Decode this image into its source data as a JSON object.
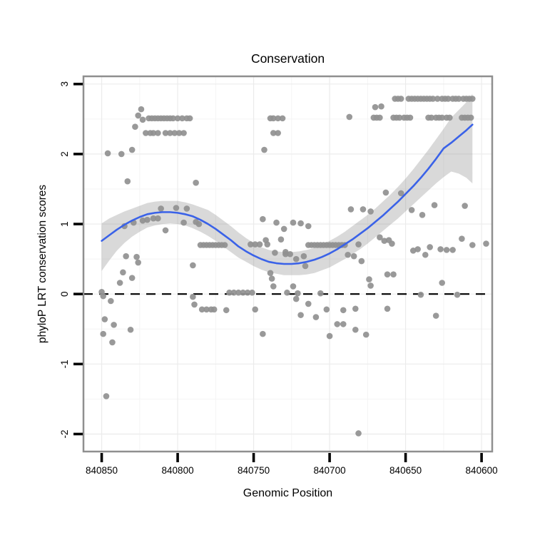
{
  "chart_data": {
    "type": "scatter",
    "title": "Conservation",
    "xlabel": "Genomic Position",
    "ylabel": "phyloP LRT conservation scores",
    "x_axis_reversed": true,
    "x_range": [
      840862,
      840593
    ],
    "y_range": [
      -2.25,
      3.11
    ],
    "x_ticks": [
      840850,
      840800,
      840750,
      840700,
      840650,
      840600
    ],
    "x_tick_labels": [
      "840850",
      "840800",
      "840750",
      "840700",
      "840650",
      "840600"
    ],
    "x_minor_ticks": [
      840825,
      840775,
      840725,
      840675,
      840625
    ],
    "y_ticks": [
      3,
      2,
      1,
      0,
      -1,
      -2
    ],
    "y_tick_labels": [
      "3",
      "2",
      "1",
      "0",
      "-1",
      "-2"
    ],
    "y_minor_ticks": [
      2.5,
      1.5,
      0.5,
      -0.5,
      -1.5
    ],
    "grid": "major and minor, very faint, on white panel",
    "zero_line": {
      "y": 0,
      "style": "dashed",
      "color": "#000000"
    },
    "colors": {
      "points": "#909090",
      "smooth_line": "#3A62E8",
      "band": "#8a8a8a",
      "band_opacity": 0.32,
      "grid_major": "#ebebeb",
      "grid_minor": "#f4f4f4",
      "panel_border": "#8f8f8f",
      "tick": "#000000",
      "text": "#000000"
    },
    "smooth_line": {
      "x": [
        840850,
        840845,
        840840,
        840835,
        840830,
        840825,
        840820,
        840815,
        840810,
        840805,
        840800,
        840795,
        840790,
        840785,
        840780,
        840775,
        840770,
        840765,
        840760,
        840755,
        840750,
        840745,
        840740,
        840735,
        840730,
        840725,
        840720,
        840715,
        840710,
        840705,
        840700,
        840695,
        840690,
        840685,
        840680,
        840675,
        840670,
        840665,
        840660,
        840655,
        840650,
        840645,
        840640,
        840635,
        840630,
        840625,
        840620,
        840615,
        840610,
        840606
      ],
      "y": [
        0.76,
        0.84,
        0.92,
        0.99,
        1.05,
        1.1,
        1.14,
        1.16,
        1.17,
        1.17,
        1.16,
        1.14,
        1.11,
        1.06,
        1.0,
        0.93,
        0.85,
        0.77,
        0.68,
        0.61,
        0.55,
        0.5,
        0.46,
        0.44,
        0.43,
        0.43,
        0.44,
        0.46,
        0.49,
        0.53,
        0.58,
        0.64,
        0.71,
        0.78,
        0.86,
        0.94,
        1.03,
        1.12,
        1.22,
        1.32,
        1.43,
        1.54,
        1.66,
        1.79,
        1.93,
        2.08,
        2.16,
        2.25,
        2.34,
        2.42
      ]
    },
    "confidence_band": {
      "x": [
        840850,
        840845,
        840840,
        840835,
        840830,
        840825,
        840820,
        840815,
        840810,
        840805,
        840800,
        840795,
        840790,
        840785,
        840780,
        840775,
        840770,
        840765,
        840760,
        840755,
        840750,
        840745,
        840740,
        840735,
        840730,
        840725,
        840720,
        840715,
        840710,
        840705,
        840700,
        840695,
        840690,
        840685,
        840680,
        840675,
        840670,
        840665,
        840660,
        840655,
        840650,
        840645,
        840640,
        840635,
        840630,
        840625,
        840620,
        840615,
        840610,
        840606
      ],
      "upper": [
        1.01,
        1.08,
        1.13,
        1.18,
        1.22,
        1.26,
        1.3,
        1.32,
        1.33,
        1.33,
        1.33,
        1.31,
        1.28,
        1.24,
        1.2,
        1.13,
        1.05,
        0.97,
        0.88,
        0.8,
        0.73,
        0.67,
        0.63,
        0.61,
        0.6,
        0.6,
        0.61,
        0.63,
        0.66,
        0.71,
        0.76,
        0.82,
        0.89,
        0.97,
        1.05,
        1.13,
        1.22,
        1.32,
        1.42,
        1.53,
        1.65,
        1.78,
        1.92,
        2.06,
        2.21,
        2.36,
        2.52,
        2.63,
        2.74,
        2.86
      ],
      "lower": [
        0.33,
        0.48,
        0.62,
        0.73,
        0.82,
        0.89,
        0.95,
        0.98,
        1.0,
        1.01,
        1.0,
        0.98,
        0.94,
        0.89,
        0.83,
        0.76,
        0.68,
        0.6,
        0.52,
        0.46,
        0.4,
        0.35,
        0.31,
        0.29,
        0.27,
        0.27,
        0.27,
        0.28,
        0.3,
        0.34,
        0.38,
        0.44,
        0.5,
        0.57,
        0.64,
        0.72,
        0.81,
        0.9,
        0.99,
        1.08,
        1.18,
        1.28,
        1.38,
        1.48,
        1.58,
        1.67,
        1.75,
        1.72,
        1.66,
        1.58
      ]
    },
    "points": [
      [
        840657,
        2.79
      ],
      [
        840655,
        2.79
      ],
      [
        840653,
        2.79
      ],
      [
        840648,
        2.79
      ],
      [
        840646,
        2.79
      ],
      [
        840644,
        2.79
      ],
      [
        840642,
        2.79
      ],
      [
        840640,
        2.79
      ],
      [
        840638,
        2.79
      ],
      [
        840636,
        2.79
      ],
      [
        840634,
        2.79
      ],
      [
        840632,
        2.79
      ],
      [
        840629,
        2.79
      ],
      [
        840626,
        2.79
      ],
      [
        840624,
        2.79
      ],
      [
        840622,
        2.79
      ],
      [
        840619,
        2.79
      ],
      [
        840617,
        2.79
      ],
      [
        840615,
        2.79
      ],
      [
        840612,
        2.79
      ],
      [
        840610,
        2.79
      ],
      [
        840608,
        2.79
      ],
      [
        840606,
        2.79
      ],
      [
        840687,
        2.53
      ],
      [
        840671,
        2.52
      ],
      [
        840669,
        2.52
      ],
      [
        840667,
        2.52
      ],
      [
        840658,
        2.52
      ],
      [
        840656,
        2.52
      ],
      [
        840654,
        2.52
      ],
      [
        840651,
        2.52
      ],
      [
        840649,
        2.52
      ],
      [
        840647,
        2.52
      ],
      [
        840635,
        2.52
      ],
      [
        840633,
        2.52
      ],
      [
        840630,
        2.52
      ],
      [
        840628,
        2.52
      ],
      [
        840626,
        2.52
      ],
      [
        840623,
        2.52
      ],
      [
        840621,
        2.52
      ],
      [
        840613,
        2.52
      ],
      [
        840611,
        2.52
      ],
      [
        840609,
        2.52
      ],
      [
        840607,
        2.52
      ],
      [
        840670,
        2.67
      ],
      [
        840666,
        2.68
      ],
      [
        840824,
        2.64
      ],
      [
        840826,
        2.55
      ],
      [
        840823,
        2.49
      ],
      [
        840819,
        2.51
      ],
      [
        840817,
        2.51
      ],
      [
        840815,
        2.51
      ],
      [
        840813,
        2.51
      ],
      [
        840811,
        2.51
      ],
      [
        840809,
        2.51
      ],
      [
        840807,
        2.51
      ],
      [
        840805,
        2.51
      ],
      [
        840803,
        2.51
      ],
      [
        840800,
        2.51
      ],
      [
        840797,
        2.51
      ],
      [
        840794,
        2.51
      ],
      [
        840792,
        2.51
      ],
      [
        840739,
        2.51
      ],
      [
        840737,
        2.51
      ],
      [
        840734,
        2.51
      ],
      [
        840731,
        2.51
      ],
      [
        840828,
        2.39
      ],
      [
        840821,
        2.3
      ],
      [
        840818,
        2.3
      ],
      [
        840816,
        2.3
      ],
      [
        840813,
        2.3
      ],
      [
        840808,
        2.3
      ],
      [
        840805,
        2.3
      ],
      [
        840802,
        2.3
      ],
      [
        840799,
        2.3
      ],
      [
        840796,
        2.3
      ],
      [
        840737,
        2.3
      ],
      [
        840734,
        2.3
      ],
      [
        840846,
        2.01
      ],
      [
        840837,
        2.0
      ],
      [
        840830,
        2.06
      ],
      [
        840743,
        2.06
      ],
      [
        840833,
        1.61
      ],
      [
        840788,
        1.59
      ],
      [
        840663,
        1.45
      ],
      [
        840653,
        1.44
      ],
      [
        840686,
        1.21
      ],
      [
        840678,
        1.21
      ],
      [
        840673,
        1.18
      ],
      [
        840631,
        1.27
      ],
      [
        840611,
        1.26
      ],
      [
        840811,
        1.22
      ],
      [
        840801,
        1.23
      ],
      [
        840794,
        1.22
      ],
      [
        840646,
        1.2
      ],
      [
        840639,
        1.13
      ],
      [
        840835,
        0.97
      ],
      [
        840829,
        1.02
      ],
      [
        840823,
        1.05
      ],
      [
        840820,
        1.06
      ],
      [
        840816,
        1.08
      ],
      [
        840813,
        1.08
      ],
      [
        840808,
        0.91
      ],
      [
        840796,
        1.02
      ],
      [
        840788,
        1.03
      ],
      [
        840786,
        1.0
      ],
      [
        840744,
        1.07
      ],
      [
        840735,
        1.02
      ],
      [
        840730,
        0.93
      ],
      [
        840724,
        1.02
      ],
      [
        840719,
        1.01
      ],
      [
        840714,
        0.97
      ],
      [
        840785,
        0.7
      ],
      [
        840783,
        0.7
      ],
      [
        840781,
        0.7
      ],
      [
        840779,
        0.7
      ],
      [
        840777,
        0.7
      ],
      [
        840775,
        0.7
      ],
      [
        840773,
        0.7
      ],
      [
        840771,
        0.7
      ],
      [
        840769,
        0.7
      ],
      [
        840752,
        0.71
      ],
      [
        840749,
        0.71
      ],
      [
        840746,
        0.71
      ],
      [
        840741,
        0.71
      ],
      [
        840742,
        0.77
      ],
      [
        840732,
        0.78
      ],
      [
        840714,
        0.7
      ],
      [
        840712,
        0.7
      ],
      [
        840710,
        0.7
      ],
      [
        840708,
        0.7
      ],
      [
        840706,
        0.7
      ],
      [
        840704,
        0.7
      ],
      [
        840702,
        0.7
      ],
      [
        840700,
        0.7
      ],
      [
        840698,
        0.7
      ],
      [
        840696,
        0.7
      ],
      [
        840694,
        0.7
      ],
      [
        840692,
        0.7
      ],
      [
        840690,
        0.7
      ],
      [
        840681,
        0.71
      ],
      [
        840667,
        0.81
      ],
      [
        840664,
        0.76
      ],
      [
        840661,
        0.77
      ],
      [
        840659,
        0.72
      ],
      [
        840613,
        0.79
      ],
      [
        840606,
        0.7
      ],
      [
        840597,
        0.72
      ],
      [
        840634,
        0.67
      ],
      [
        840627,
        0.64
      ],
      [
        840623,
        0.63
      ],
      [
        840619,
        0.63
      ],
      [
        840645,
        0.62
      ],
      [
        840642,
        0.64
      ],
      [
        840637,
        0.56
      ],
      [
        840736,
        0.59
      ],
      [
        840729,
        0.6
      ],
      [
        840834,
        0.54
      ],
      [
        840827,
        0.53
      ],
      [
        840826,
        0.45
      ],
      [
        840790,
        0.41
      ],
      [
        840729,
        0.57
      ],
      [
        840726,
        0.57
      ],
      [
        840722,
        0.5
      ],
      [
        840717,
        0.54
      ],
      [
        840716,
        0.4
      ],
      [
        840688,
        0.56
      ],
      [
        840684,
        0.54
      ],
      [
        840679,
        0.47
      ],
      [
        840850,
        0.03
      ],
      [
        840849,
        -0.03
      ],
      [
        840844,
        -0.1
      ],
      [
        840838,
        0.16
      ],
      [
        840836,
        0.31
      ],
      [
        840830,
        0.23
      ],
      [
        840790,
        -0.04
      ],
      [
        840789,
        -0.15
      ],
      [
        840766,
        0.02
      ],
      [
        840763,
        0.02
      ],
      [
        840760,
        0.02
      ],
      [
        840757,
        0.02
      ],
      [
        840754,
        0.02
      ],
      [
        840751,
        0.02
      ],
      [
        840739,
        0.3
      ],
      [
        840738,
        0.22
      ],
      [
        840737,
        0.11
      ],
      [
        840728,
        0.02
      ],
      [
        840724,
        0.11
      ],
      [
        840721,
        0.01
      ],
      [
        840722,
        -0.07
      ],
      [
        840714,
        -0.14
      ],
      [
        840706,
        0.01
      ],
      [
        840674,
        0.21
      ],
      [
        840673,
        0.12
      ],
      [
        840662,
        0.28
      ],
      [
        840658,
        0.28
      ],
      [
        840640,
        -0.01
      ],
      [
        840626,
        0.16
      ],
      [
        840616,
        -0.01
      ],
      [
        840848,
        -0.36
      ],
      [
        840842,
        -0.44
      ],
      [
        840849,
        -0.57
      ],
      [
        840843,
        -0.69
      ],
      [
        840847,
        -1.46
      ],
      [
        840831,
        -0.51
      ],
      [
        840784,
        -0.22
      ],
      [
        840781,
        -0.22
      ],
      [
        840778,
        -0.22
      ],
      [
        840776,
        -0.22
      ],
      [
        840768,
        -0.23
      ],
      [
        840749,
        -0.22
      ],
      [
        840744,
        -0.57
      ],
      [
        840719,
        -0.3
      ],
      [
        840709,
        -0.33
      ],
      [
        840702,
        -0.22
      ],
      [
        840700,
        -0.6
      ],
      [
        840695,
        -0.43
      ],
      [
        840691,
        -0.43
      ],
      [
        840691,
        -0.23
      ],
      [
        840683,
        -0.51
      ],
      [
        840683,
        -0.21
      ],
      [
        840676,
        -0.58
      ],
      [
        840662,
        -0.21
      ],
      [
        840630,
        -0.31
      ],
      [
        840681,
        -1.99
      ]
    ]
  }
}
